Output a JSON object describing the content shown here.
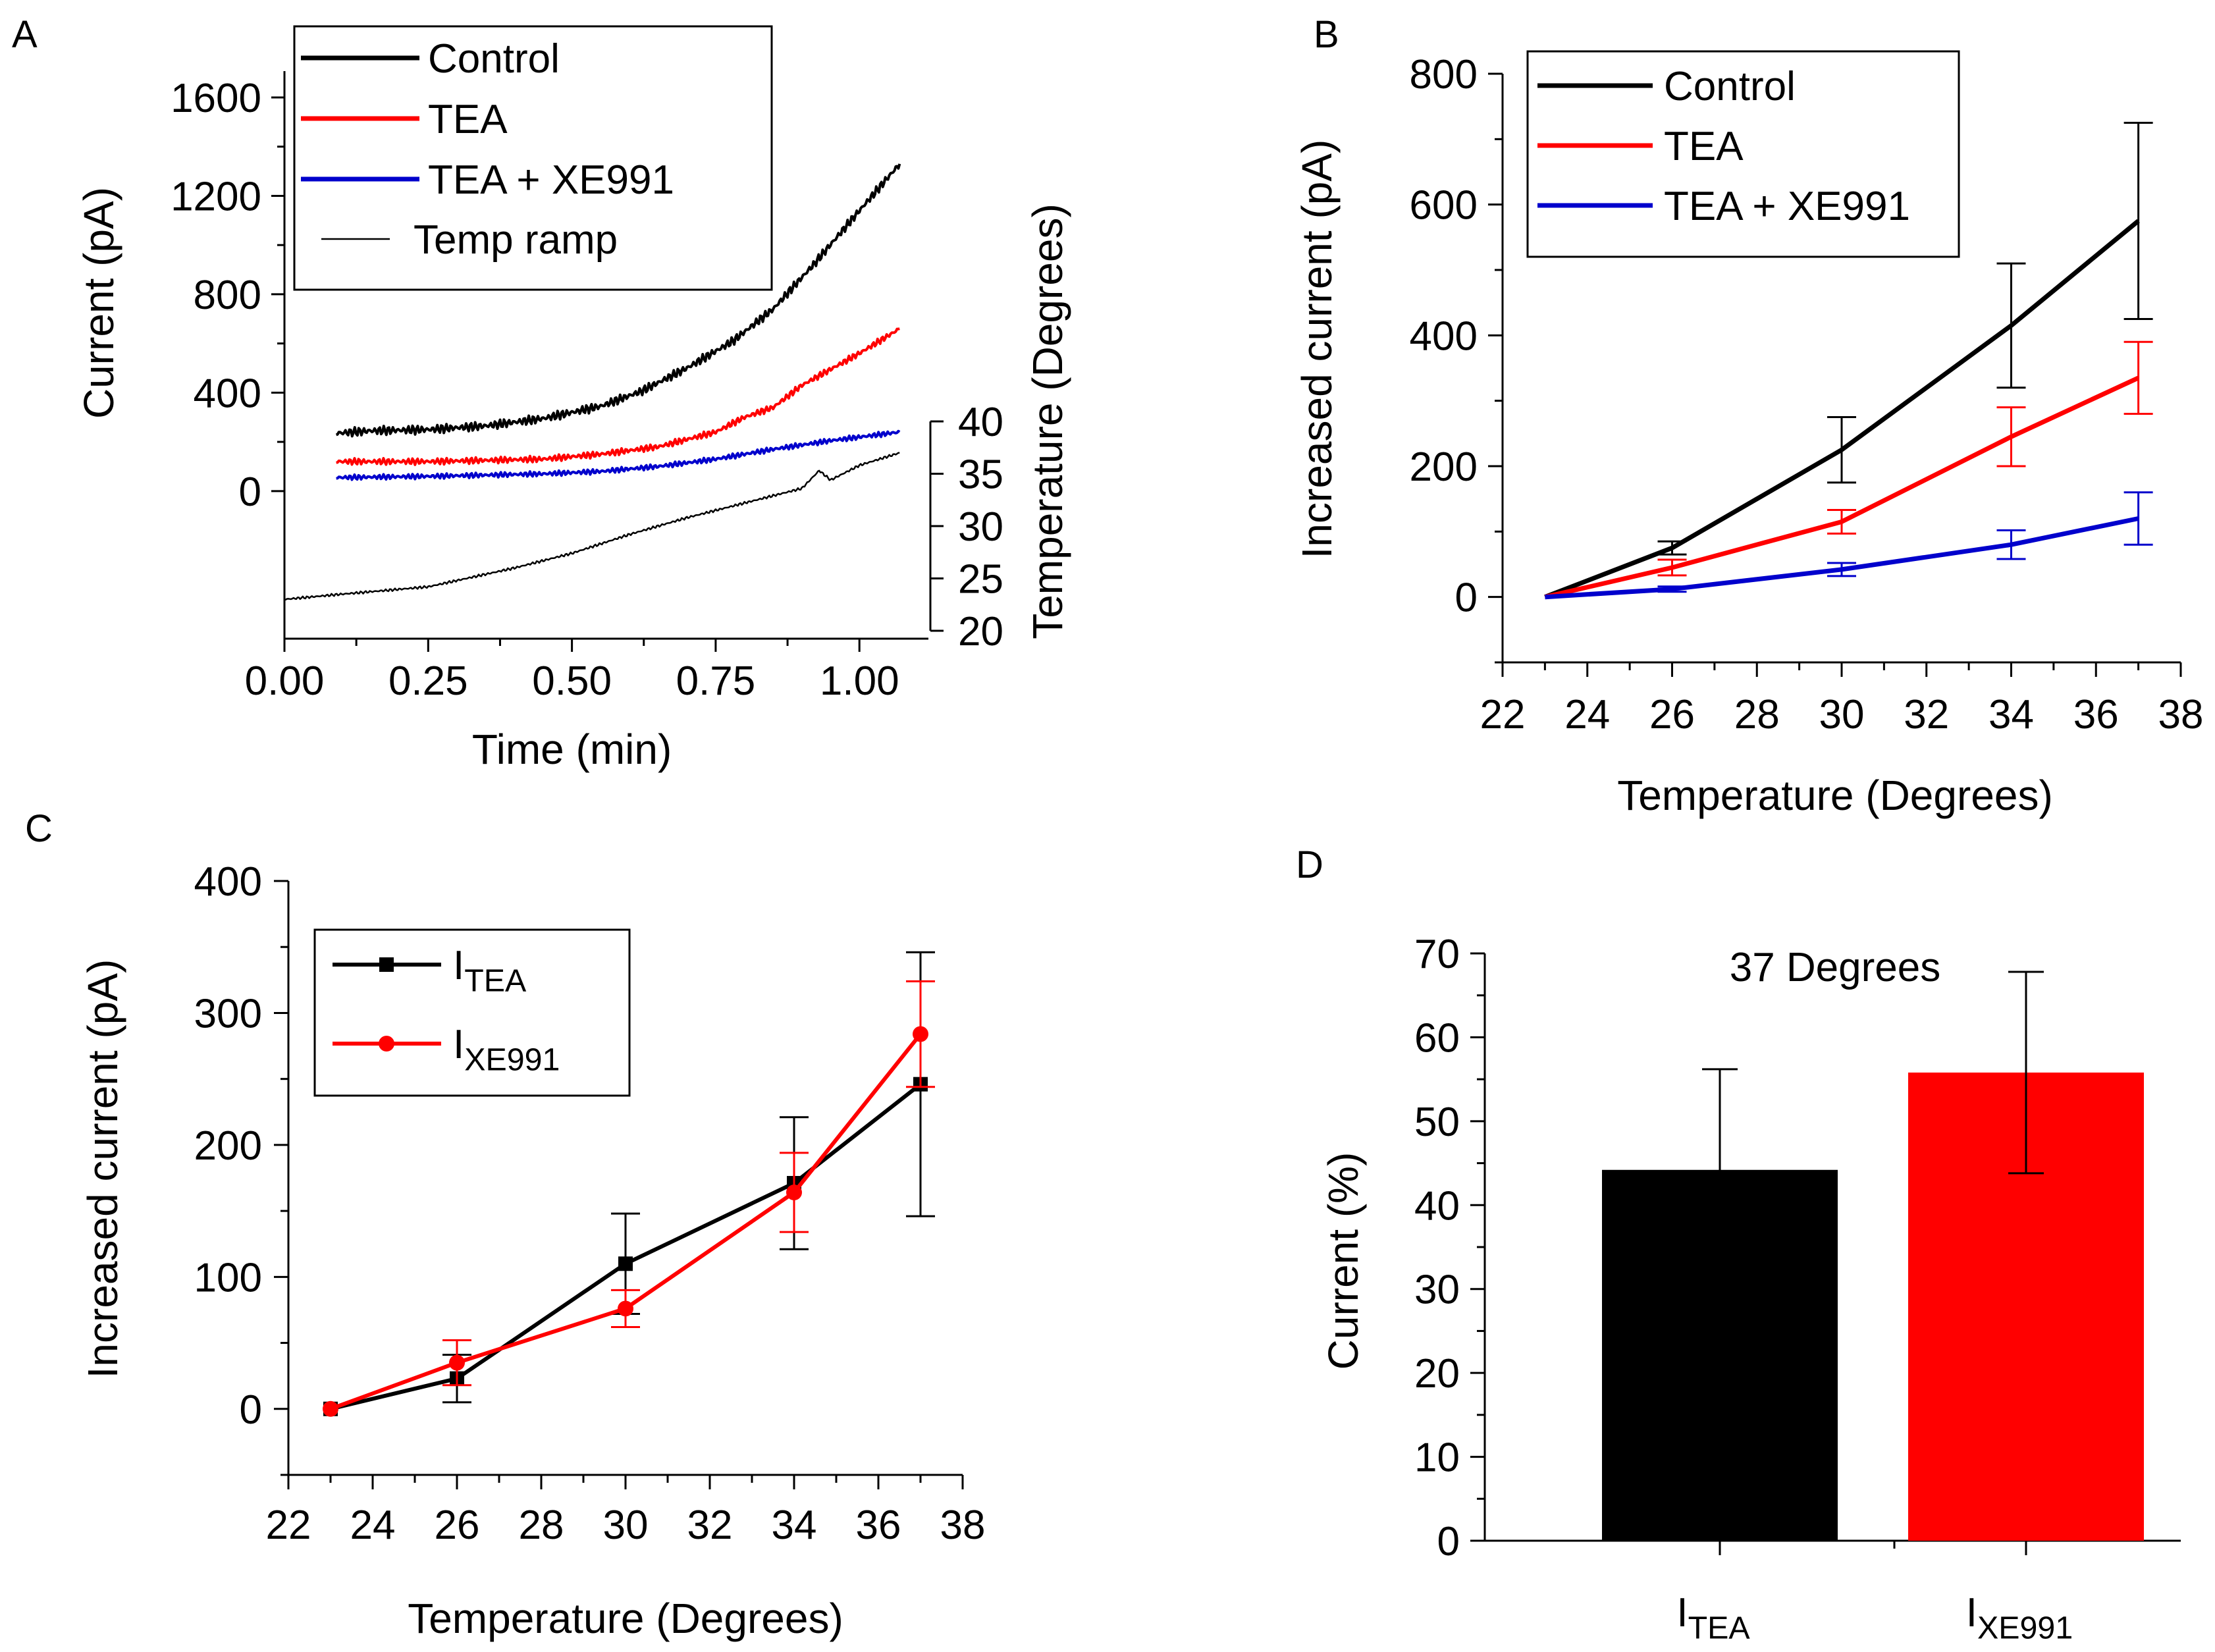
{
  "figure_labels": {
    "a": "A",
    "b": "B",
    "c": "C",
    "d": "D"
  },
  "colors": {
    "black": "#000000",
    "red": "#ff0000",
    "blue": "#0000cc"
  },
  "chart_data": [
    {
      "panel": "A",
      "type": "line",
      "xlabel": "Time (min)",
      "ylabel": "Current (pA)",
      "y2label": "Temperature (Degrees)",
      "xlim": [
        0,
        1.12
      ],
      "ylim": [
        -600,
        1600
      ],
      "y2lim": [
        18.5,
        40
      ],
      "xticks": [
        "0.00",
        "0.25",
        "0.50",
        "0.75",
        "1.00"
      ],
      "xtick_values": [
        0,
        0.25,
        0.5,
        0.75,
        1.0
      ],
      "yticks": [
        "0",
        "400",
        "800",
        "1200",
        "1600"
      ],
      "ytick_values": [
        0,
        400,
        800,
        1200,
        1600
      ],
      "y2ticks": [
        "20",
        "25",
        "30",
        "35",
        "40"
      ],
      "y2tick_values": [
        20,
        25,
        30,
        35,
        40
      ],
      "legend": [
        "Control",
        "TEA",
        "TEA + XE991",
        "Temp ramp"
      ],
      "series": [
        {
          "name": "Control",
          "color": "#000000",
          "axis": "left",
          "x": [
            0.09,
            0.15,
            0.25,
            0.35,
            0.45,
            0.55,
            0.62,
            0.7,
            0.78,
            0.85,
            0.92,
            1.0,
            1.07
          ],
          "y": [
            235,
            245,
            250,
            265,
            295,
            345,
            405,
            500,
            610,
            740,
            920,
            1140,
            1330
          ]
        },
        {
          "name": "TEA",
          "color": "#ff0000",
          "axis": "left",
          "x": [
            0.09,
            0.25,
            0.45,
            0.55,
            0.65,
            0.75,
            0.8,
            0.85,
            0.9,
            1.0,
            1.07
          ],
          "y": [
            120,
            120,
            130,
            150,
            180,
            240,
            300,
            340,
            430,
            560,
            660
          ]
        },
        {
          "name": "TEA + XE991",
          "color": "#0000cc",
          "axis": "left",
          "x": [
            0.09,
            0.25,
            0.45,
            0.55,
            0.65,
            0.75,
            0.85,
            0.95,
            1.07
          ],
          "y": [
            55,
            60,
            70,
            80,
            100,
            130,
            170,
            205,
            240
          ]
        },
        {
          "name": "Temp ramp",
          "color": "#000000",
          "axis": "right",
          "x": [
            0.0,
            0.1,
            0.25,
            0.4,
            0.5,
            0.6,
            0.7,
            0.8,
            0.9,
            0.93,
            0.95,
            1.0,
            1.07
          ],
          "y": [
            23.0,
            23.5,
            24.2,
            26.0,
            27.4,
            29.2,
            30.8,
            32.2,
            33.6,
            35.3,
            34.4,
            35.8,
            37.0
          ]
        }
      ]
    },
    {
      "panel": "B",
      "type": "line",
      "xlabel": "Temperature (Degrees)",
      "ylabel": "Increased current (pA)",
      "xlim": [
        22,
        38
      ],
      "ylim": [
        -100,
        800
      ],
      "xticks": [
        "22",
        "24",
        "26",
        "28",
        "30",
        "32",
        "34",
        "36",
        "38"
      ],
      "yticks": [
        "0",
        "200",
        "400",
        "600",
        "800"
      ],
      "legend": [
        "Control",
        "TEA",
        "TEA + XE991"
      ],
      "x": [
        23,
        26,
        30,
        34,
        37
      ],
      "series": [
        {
          "name": "Control",
          "color": "#000000",
          "values": [
            0,
            75,
            225,
            415,
            575
          ],
          "errors": [
            0,
            10,
            50,
            95,
            150
          ]
        },
        {
          "name": "TEA",
          "color": "#ff0000",
          "values": [
            0,
            45,
            115,
            245,
            335
          ],
          "errors": [
            0,
            12,
            18,
            45,
            55
          ]
        },
        {
          "name": "TEA + XE991",
          "color": "#0000cc",
          "values": [
            0,
            12,
            42,
            80,
            120
          ],
          "errors": [
            0,
            4,
            10,
            22,
            40
          ]
        }
      ]
    },
    {
      "panel": "C",
      "type": "line",
      "xlabel": "Temperature (Degrees)",
      "ylabel": "Increased current (pA)",
      "xlim": [
        22,
        38
      ],
      "ylim": [
        -50,
        400
      ],
      "xticks": [
        "22",
        "24",
        "26",
        "28",
        "30",
        "32",
        "34",
        "36",
        "38"
      ],
      "yticks": [
        "0",
        "100",
        "200",
        "300",
        "400"
      ],
      "legend": [
        {
          "main": "I",
          "sub": "TEA"
        },
        {
          "main": "I",
          "sub": "XE991"
        }
      ],
      "x": [
        23,
        26,
        30,
        34,
        37
      ],
      "series": [
        {
          "name": "I_TEA",
          "color": "#000000",
          "marker": "square",
          "values": [
            0,
            23,
            110,
            171,
            246
          ],
          "errors": [
            0,
            18,
            38,
            50,
            100
          ]
        },
        {
          "name": "I_XE991",
          "color": "#ff0000",
          "marker": "circle",
          "values": [
            0,
            35,
            76,
            164,
            284
          ],
          "errors": [
            0,
            17,
            14,
            30,
            40
          ]
        }
      ]
    },
    {
      "panel": "D",
      "type": "bar",
      "title": "37 Degrees",
      "ylabel": "Current (%)",
      "ylim": [
        0,
        70
      ],
      "yticks": [
        "0",
        "10",
        "20",
        "30",
        "40",
        "50",
        "60",
        "70"
      ],
      "categories": [
        {
          "main": "I",
          "sub": "TEA"
        },
        {
          "main": "I",
          "sub": "XE991"
        }
      ],
      "values": [
        44.2,
        55.8
      ],
      "errors": [
        12,
        12
      ],
      "bar_colors": [
        "#000000",
        "#ff0000"
      ]
    }
  ]
}
